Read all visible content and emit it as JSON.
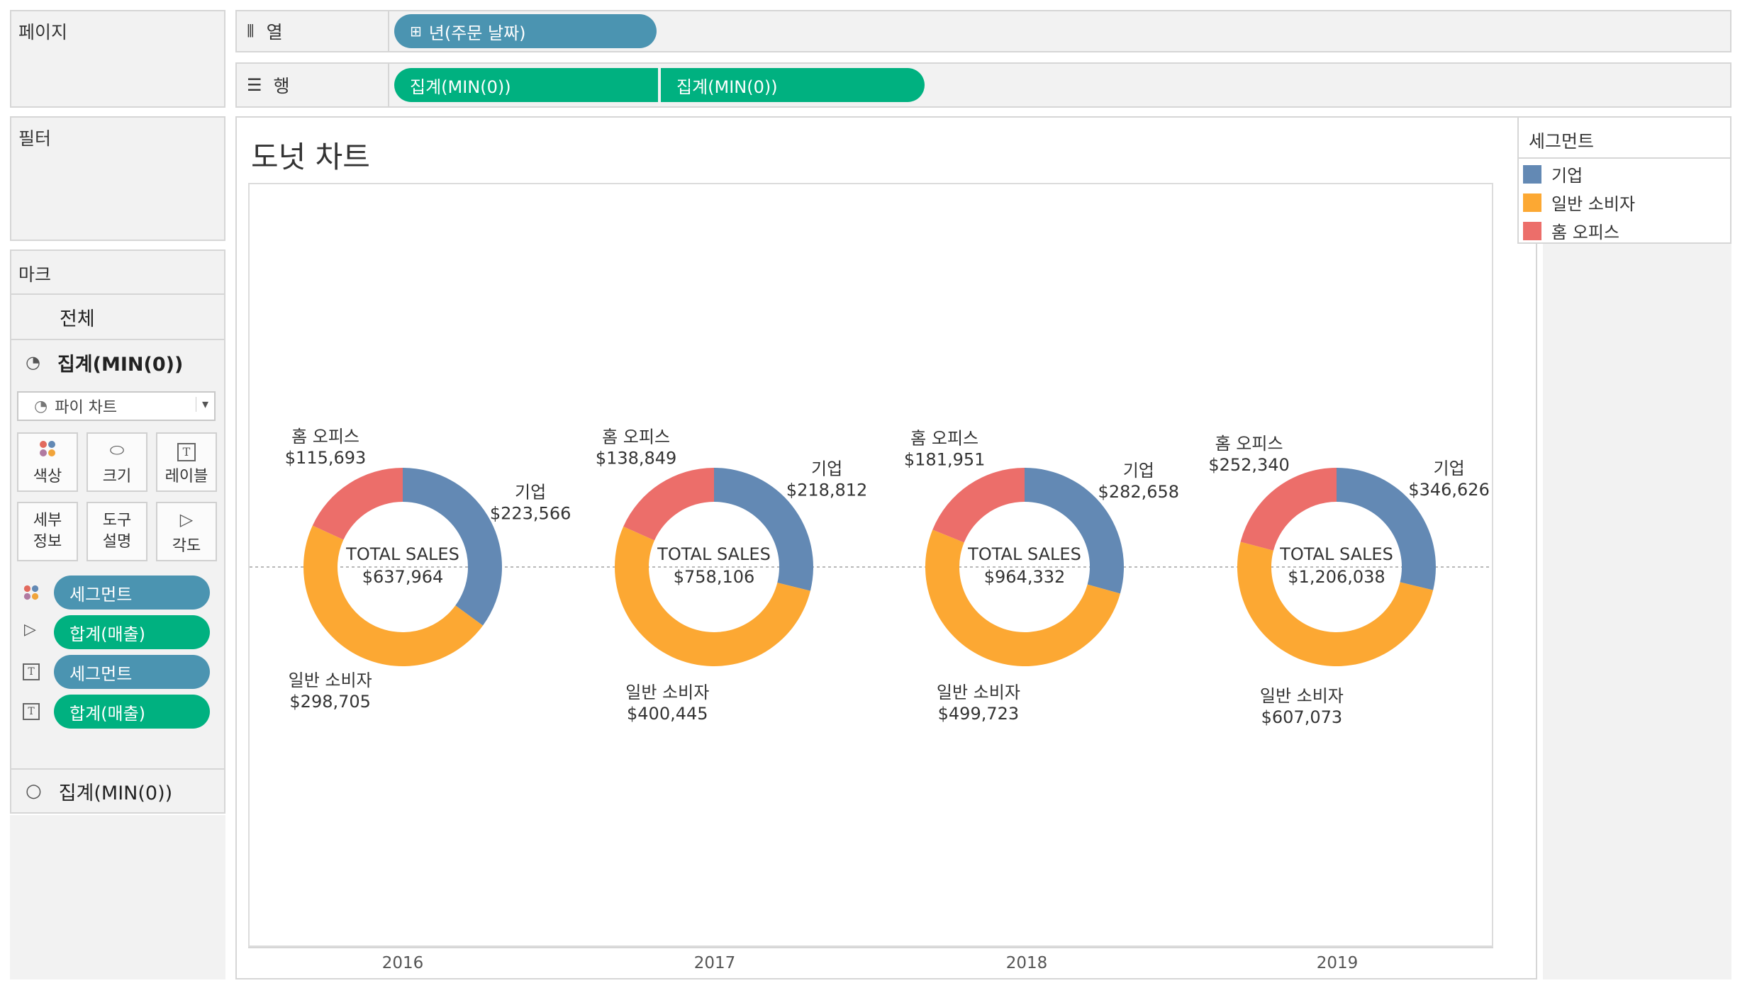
{
  "shelves": {
    "pages_label": "페이지",
    "columns_label": "열",
    "rows_label": "행",
    "columns_pill": "년(주문 날짜)",
    "rows_pills": [
      "집계(MIN(0))",
      "집계(MIN(0))"
    ]
  },
  "filters_label": "필터",
  "marks": {
    "title": "마크",
    "all_label": "전체",
    "active_layer": "집계(MIN(0))",
    "mark_type": "파이 차트",
    "buttons": {
      "color": "색상",
      "size": "크기",
      "label": "레이블",
      "detail_1": "세부",
      "detail_2": "정보",
      "tooltip_1": "도구",
      "tooltip_2": "설명",
      "angle": "각도"
    },
    "fields": [
      "세그먼트",
      "합계(매출)",
      "세그먼트",
      "합계(매출)"
    ],
    "second_layer": "집계(MIN(0))"
  },
  "worksheet": {
    "title": "도넛 차트"
  },
  "legend": {
    "title": "세그먼트",
    "items": [
      {
        "label": "기업",
        "color": "#6389b4"
      },
      {
        "label": "일반 소비자",
        "color": "#fca833"
      },
      {
        "label": "홈 오피스",
        "color": "#ec6e6a"
      }
    ]
  },
  "chart_data": {
    "type": "pie",
    "categories": [
      "2016",
      "2017",
      "2018",
      "2019"
    ],
    "series": [
      {
        "name": "기업",
        "values": [
          223566,
          218812,
          282658,
          346626
        ],
        "labels": [
          "$223,566",
          "$218,812",
          "$282,658",
          "$346,626"
        ]
      },
      {
        "name": "일반 소비자",
        "values": [
          298705,
          400445,
          499723,
          607073
        ],
        "labels": [
          "$298,705",
          "$400,445",
          "$499,723",
          "$607,073"
        ]
      },
      {
        "name": "홈 오피스",
        "values": [
          115693,
          138849,
          181951,
          252340
        ],
        "labels": [
          "$115,693",
          "$138,849",
          "$181,951",
          "$252,340"
        ]
      }
    ],
    "center_label": "TOTAL SALES",
    "totals": [
      "$637,964",
      "$758,106",
      "$964,332",
      "$1,206,038"
    ]
  }
}
